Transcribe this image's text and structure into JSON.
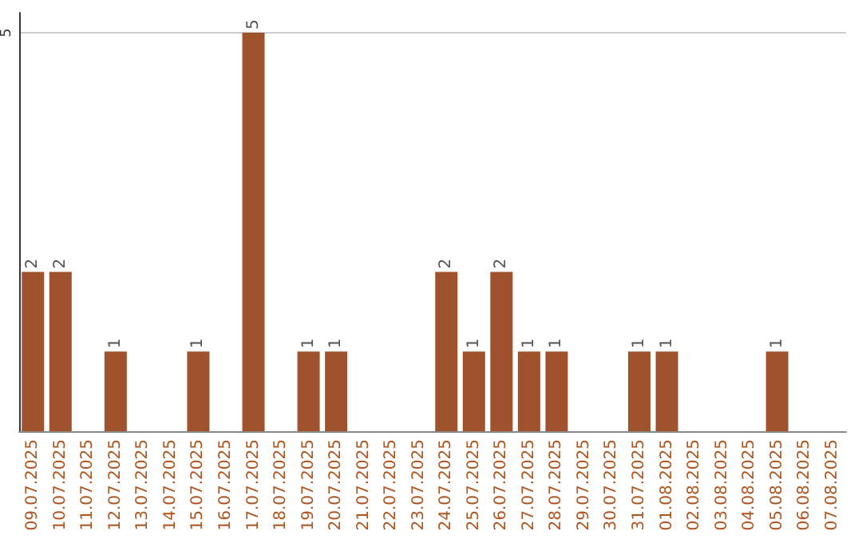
{
  "chart_data": {
    "type": "bar",
    "categories": [
      "09.07.2025",
      "10.07.2025",
      "11.07.2025",
      "12.07.2025",
      "13.07.2025",
      "14.07.2025",
      "15.07.2025",
      "16.07.2025",
      "17.07.2025",
      "18.07.2025",
      "19.07.2025",
      "20.07.2025",
      "21.07.2025",
      "22.07.2025",
      "23.07.2025",
      "24.07.2025",
      "25.07.2025",
      "26.07.2025",
      "27.07.2025",
      "28.07.2025",
      "29.07.2025",
      "30.07.2025",
      "31.07.2025",
      "01.08.2025",
      "02.08.2025",
      "03.08.2025",
      "04.08.2025",
      "05.08.2025",
      "06.08.2025",
      "07.08.2025"
    ],
    "values": [
      2,
      2,
      0,
      1,
      0,
      0,
      1,
      0,
      5,
      0,
      1,
      1,
      0,
      0,
      0,
      2,
      1,
      2,
      1,
      1,
      0,
      0,
      1,
      1,
      0,
      0,
      0,
      1,
      0,
      0
    ],
    "value_labels": [
      "2",
      "2",
      null,
      "1",
      null,
      null,
      "1",
      null,
      "5",
      null,
      "1",
      "1",
      null,
      null,
      null,
      "2",
      "1",
      "2",
      "1",
      "1",
      null,
      null,
      "1",
      "1",
      null,
      null,
      null,
      "1",
      null,
      null
    ],
    "color": "#a0522d",
    "ylim": [
      0,
      5.25
    ],
    "yticks": [
      5
    ],
    "grid": "y"
  }
}
